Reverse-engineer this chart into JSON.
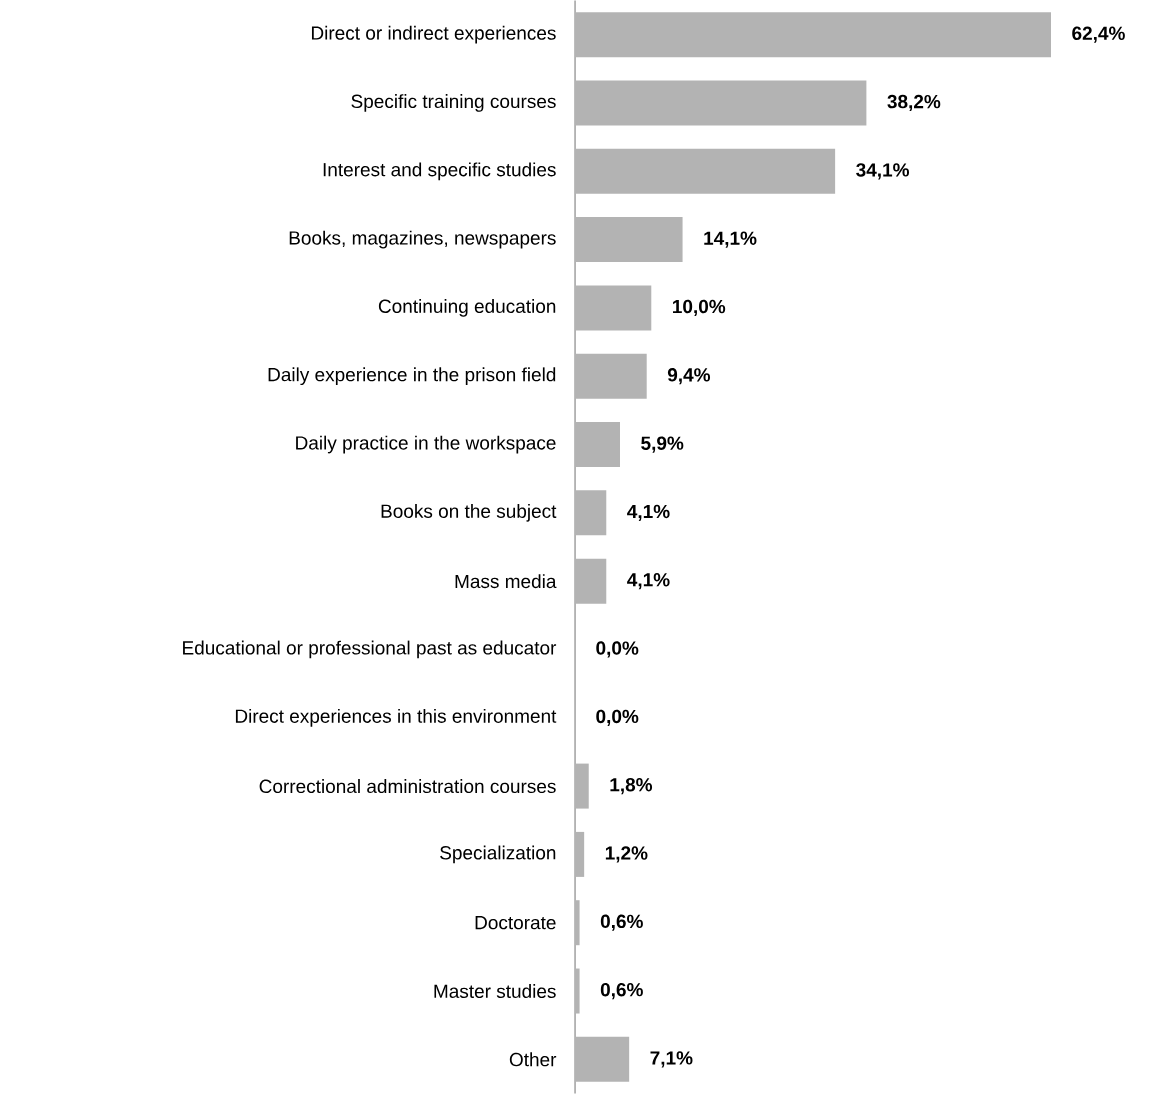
{
  "chart_data": {
    "type": "bar",
    "orientation": "horizontal",
    "categories": [
      "Direct or indirect experiences",
      "Specific training courses",
      "Interest and specific studies",
      "Books, magazines, newspapers",
      "Continuing education",
      "Daily experience in the prison field",
      "Daily practice in the workspace",
      "Books on the subject",
      "Mass media",
      "Educational or professional past as educator",
      "Direct experiences in this environment",
      "Correctional administration courses",
      "Specialization",
      "Doctorate",
      "Master studies",
      "Other"
    ],
    "values": [
      62.4,
      38.2,
      34.1,
      14.1,
      10.0,
      9.4,
      5.9,
      4.1,
      4.1,
      0.0,
      0.0,
      1.8,
      1.2,
      0.6,
      0.6,
      7.1
    ],
    "value_labels": [
      "62,4%",
      "38,2%",
      "34,1%",
      "14,1%",
      "10,0%",
      "9,4%",
      "5,9%",
      "4,1%",
      "4,1%",
      "0,0%",
      "0,0%",
      "1,8%",
      "1,2%",
      "0,6%",
      "0,6%",
      "7,1%"
    ],
    "color": "#b3b3b3"
  }
}
